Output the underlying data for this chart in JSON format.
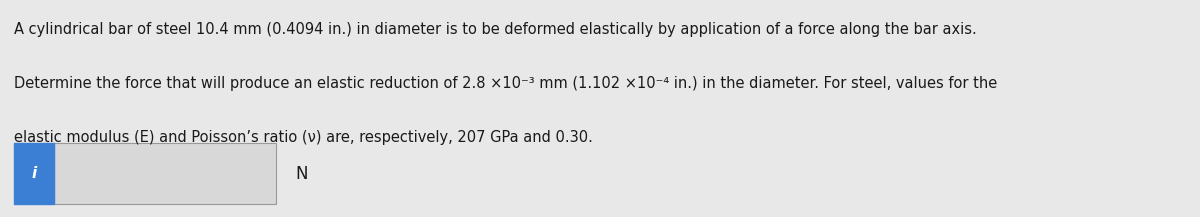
{
  "background_color": "#e8e8e8",
  "text_line1": "A cylindrical bar of steel 10.4 mm (0.4094 in.) in diameter is to be deformed elastically by application of a force along the bar axis.",
  "text_line2": "Determine the force that will produce an elastic reduction of 2.8 ×10⁻³ mm (1.102 ×10⁻⁴ in.) in the diameter. For steel, values for the",
  "text_line3": "elastic modulus (E) and Poisson’s ratio (ν) are, respectively, 207 GPa and 0.30.",
  "icon_label": "i",
  "icon_bg_color": "#3a7fd4",
  "icon_text_color": "#ffffff",
  "input_box_facecolor": "#d8d8d8",
  "input_border_color": "#999999",
  "unit_label": "N",
  "text_color": "#1a1a1a",
  "text_fontsize": 10.5,
  "font_family": "DejaVu Sans"
}
